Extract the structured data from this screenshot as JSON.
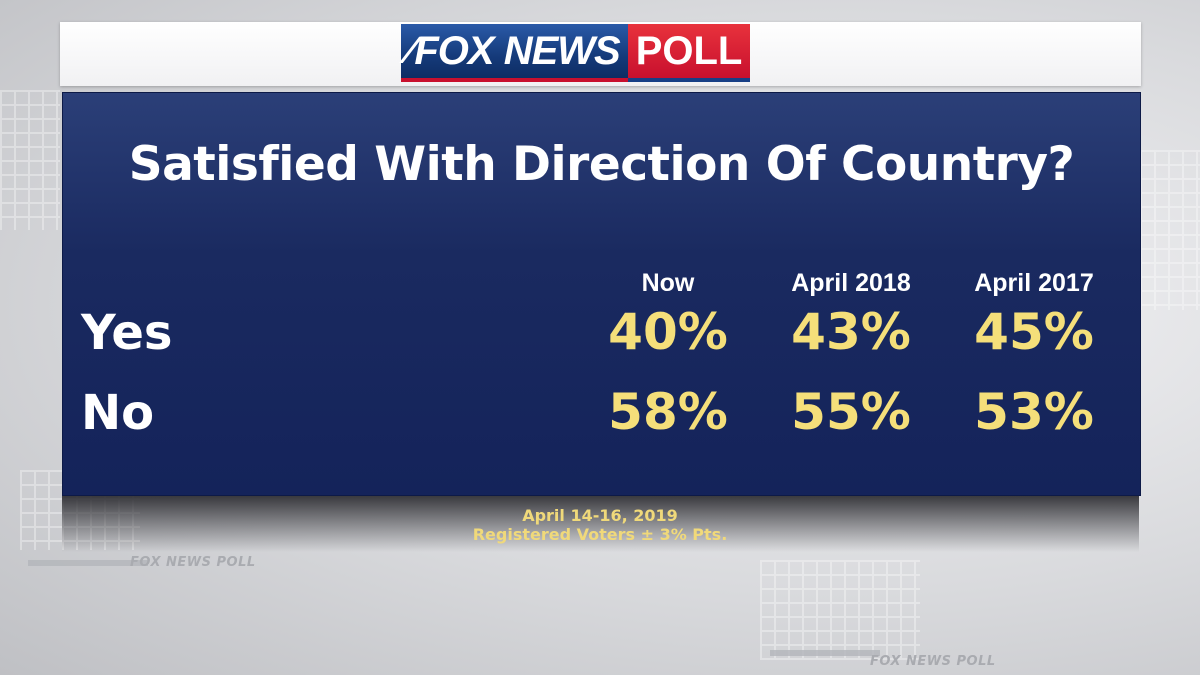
{
  "header": {
    "logo_fox": "FOX NEWS",
    "logo_poll": "POLL"
  },
  "chart_data": {
    "type": "table",
    "title": "Satisfied With Direction Of Country?",
    "columns": [
      "Now",
      "April 2018",
      "April 2017"
    ],
    "rows": [
      {
        "label": "Yes",
        "values": [
          "40%",
          "43%",
          "45%"
        ]
      },
      {
        "label": "No",
        "values": [
          "58%",
          "55%",
          "53%"
        ]
      }
    ]
  },
  "footer": {
    "dates": "April 14-16, 2019",
    "sample": "Registered Voters ± 3% Pts."
  },
  "background_watermark": "FOX NEWS POLL",
  "colors": {
    "panel": "#1a2a60",
    "value_text": "#f5df7a",
    "fox_blue": "#173f86",
    "poll_red": "#c8102e"
  }
}
